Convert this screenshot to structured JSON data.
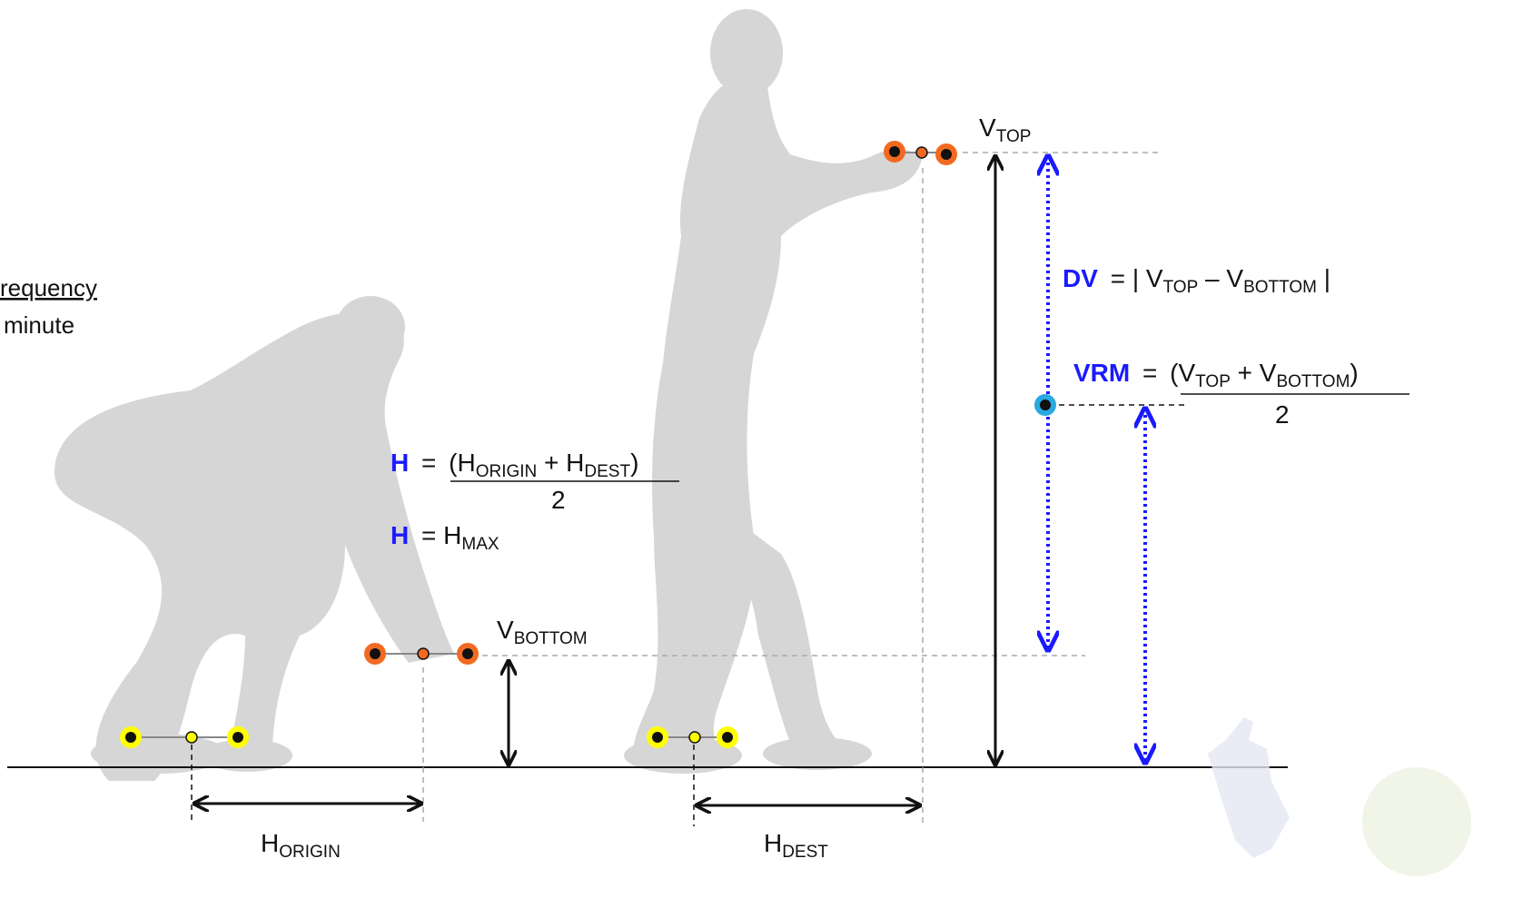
{
  "left_fragment": {
    "line1": "requency",
    "line2": "minute"
  },
  "labels": {
    "v_top": {
      "base": "V",
      "sub": "TOP"
    },
    "v_bottom": {
      "base": "V",
      "sub": "BOTTOM"
    },
    "h_origin": {
      "base": "H",
      "sub": "ORIGIN"
    },
    "h_dest": {
      "base": "H",
      "sub": "DEST"
    }
  },
  "formulas": {
    "h_avg": {
      "symbol": "H",
      "eq": "=",
      "open": "(H",
      "sub1": "ORIGIN",
      "plus": " + H",
      "sub2": "DEST",
      "close": ")",
      "denominator": "2"
    },
    "h_max": {
      "symbol": "H",
      "eq": "= H",
      "sub": "MAX"
    },
    "dv": {
      "symbol": "DV",
      "part1": "= | V",
      "sub1": "TOP",
      "part2": " – V",
      "sub2": "BOTTOM",
      "part3": " |"
    },
    "vrm": {
      "symbol": "VRM",
      "eq": "=",
      "open": "(V",
      "sub1": "TOP",
      "plus": " + V",
      "sub2": "BOTTOM",
      "close": ")",
      "denominator": "2"
    }
  },
  "colors": {
    "figure": "#d6d6d6",
    "accent_blue": "#1a1aff",
    "hand_marker": "#f26a21",
    "foot_marker": "#ffff00",
    "vrm_marker": "#29a9e0",
    "guide_line": "#aaaaaa",
    "arrow": "#111111"
  }
}
